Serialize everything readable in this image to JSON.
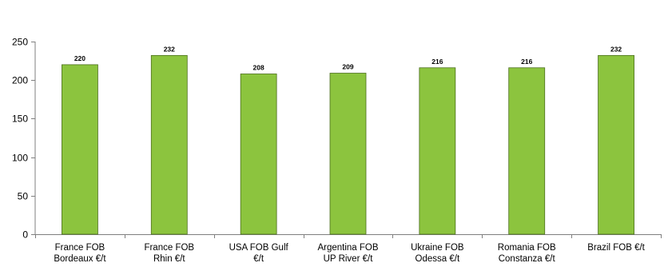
{
  "chart_data": {
    "type": "bar",
    "categories": [
      [
        "France FOB",
        "Bordeaux €/t"
      ],
      [
        "France FOB",
        "Rhin €/t"
      ],
      [
        "USA FOB Gulf",
        "€/t"
      ],
      [
        "Argentina FOB",
        "UP River €/t"
      ],
      [
        "Ukraine FOB",
        "Odessa €/t"
      ],
      [
        "Romania FOB",
        "Constanza €/t"
      ],
      [
        "Brazil FOB  €/t"
      ]
    ],
    "values": [
      220,
      232,
      208,
      209,
      216,
      216,
      232
    ],
    "data_labels": [
      "220",
      "232",
      "208",
      "209",
      "216",
      "216",
      "232"
    ],
    "y_ticks": [
      "0",
      "50",
      "100",
      "150",
      "200",
      "250"
    ],
    "ylim": [
      0,
      250
    ],
    "title": "",
    "xlabel": "",
    "ylabel": "",
    "grid": false,
    "legend": "none",
    "colors": {
      "bar_fill": "#8cc43e",
      "bar_stroke": "#4b6e1c",
      "axis": "#7f7f7f"
    }
  }
}
